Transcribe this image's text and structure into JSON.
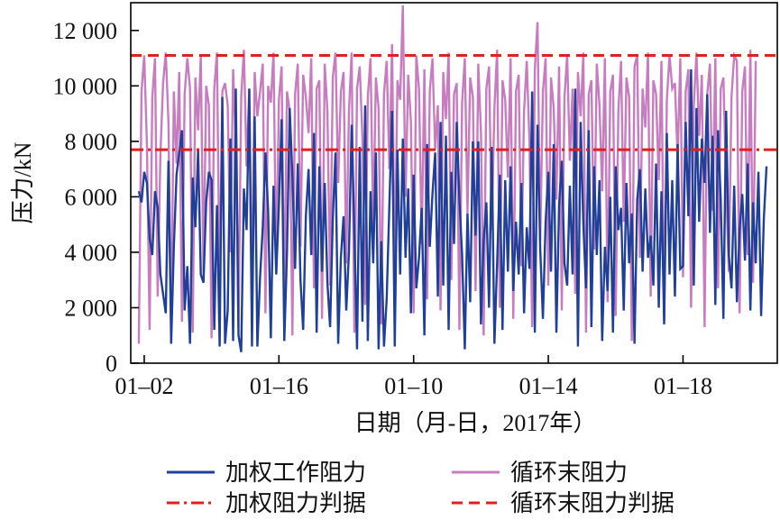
{
  "chart_data": {
    "type": "line",
    "title": "",
    "xlabel": "日期（月-日，2017年）",
    "ylabel": "压力/kN",
    "ylim": [
      0,
      13000
    ],
    "yticks": [
      0,
      2000,
      4000,
      6000,
      8000,
      10000,
      12000
    ],
    "ytick_labels": [
      "0",
      "2 000",
      "4 000",
      "6 000",
      "8 000",
      "10 000",
      "12 000"
    ],
    "x_tick_labels": [
      "01–02",
      "01–16",
      "01–10",
      "01–14",
      "01–18"
    ],
    "x_tick_positions": [
      2,
      52,
      102,
      152,
      202
    ],
    "xlim": [
      -3,
      237
    ],
    "legend_position": "bottom",
    "series": [
      {
        "name": "加权工作阻力",
        "color": "#1f3f99",
        "values": [
          6200,
          5800,
          6900,
          6500,
          4500,
          3900,
          6200,
          5600,
          3200,
          2500,
          1800,
          7300,
          700,
          4200,
          6800,
          7600,
          8400,
          1900,
          3500,
          700,
          6700,
          4900,
          7700,
          3200,
          2900,
          5800,
          6900,
          6600,
          1200,
          5700,
          600,
          9600,
          700,
          1900,
          8100,
          800,
          9900,
          1000,
          400,
          6300,
          4800,
          9900,
          600,
          8900,
          600,
          3100,
          4900,
          7600,
          5500,
          900,
          6400,
          3200,
          5700,
          8800,
          800,
          4000,
          9200,
          6800,
          3400,
          7200,
          3000,
          1200,
          5300,
          7000,
          3900,
          8300,
          1100,
          7100,
          3300,
          6500,
          2900,
          1300,
          5200,
          7600,
          700,
          3800,
          5300,
          1900,
          4000,
          8600,
          4700,
          500,
          7800,
          1500,
          9300,
          800,
          6200,
          3600,
          7600,
          500,
          4400,
          600,
          2300,
          5700,
          9100,
          600,
          7700,
          3200,
          8100,
          3800,
          6300,
          1800,
          6800,
          2700,
          3800,
          5600,
          1000,
          7900,
          4200,
          6100,
          7600,
          2400,
          8700,
          2800,
          8200,
          1200,
          6900,
          4300,
          8700,
          5900,
          3900,
          500,
          5400,
          2200,
          8000,
          4600,
          8000,
          1400,
          4400,
          5800,
          2000,
          7800,
          700,
          3600,
          6800,
          1200,
          6600,
          3300,
          7100,
          2600,
          5100,
          3200,
          6500,
          1800,
          4900,
          3400,
          9800,
          1100,
          8600,
          4100,
          1600,
          5100,
          6900,
          3300,
          7900,
          1100,
          5700,
          7300,
          3600,
          2800,
          6400,
          3200,
          9900,
          600,
          8700,
          5000,
          2700,
          8400,
          1300,
          7100,
          3900,
          6600,
          800,
          4200,
          2600,
          6000,
          1100,
          7100,
          4800,
          5600,
          1900,
          6500,
          3600,
          5400,
          700,
          5900,
          7000,
          3300,
          6300,
          3800,
          4600,
          2800,
          7200,
          2000,
          6200,
          1400,
          8300,
          3200,
          6600,
          2400,
          7900,
          3400,
          3500,
          8700,
          5300,
          10600,
          2800,
          9200,
          5100,
          8100,
          6500,
          9700,
          4700,
          8200,
          2100,
          8400,
          5900,
          1600,
          9100,
          3900,
          2700,
          6400,
          2200,
          4800,
          6100,
          3700,
          7200,
          1900,
          5800,
          3600,
          6900,
          1700,
          5200,
          7100
        ]
      },
      {
        "name": "循环末阻力",
        "color": "#c77cbf",
        "values": [
          700,
          9800,
          11100,
          7900,
          1200,
          9600,
          11000,
          2400,
          7500,
          10100,
          11200,
          8700,
          1100,
          9800,
          7200,
          10500,
          1500,
          9700,
          11000,
          9900,
          1100,
          10300,
          8400,
          11100,
          3200,
          10000,
          9300,
          900,
          9900,
          11200,
          2600,
          9800,
          10100,
          9300,
          4000,
          10600,
          8000,
          1300,
          9600,
          11300,
          7100,
          9900,
          2300,
          10500,
          8900,
          9800,
          10800,
          1800,
          10000,
          9400,
          11200,
          3300,
          9500,
          10700,
          2000,
          9800,
          9100,
          1000,
          9700,
          10800,
          4200,
          10400,
          9600,
          8300,
          11000,
          2700,
          9900,
          10200,
          1600,
          10800,
          9100,
          2800,
          10300,
          11200,
          6500,
          9800,
          10500,
          3600,
          9100,
          11200,
          1100,
          9900,
          10700,
          8100,
          2100,
          9600,
          11000,
          4900,
          10300,
          9200,
          1400,
          9700,
          10900,
          7000,
          11500,
          3400,
          10200,
          9500,
          12900,
          6000,
          10400,
          8700,
          1800,
          11100,
          9900,
          4300,
          10600,
          2300,
          9800,
          11000,
          7700,
          9300,
          1900,
          10500,
          8800,
          11200,
          3000,
          9700,
          10100,
          1200,
          9400,
          11000,
          5400,
          10300,
          9600,
          2600,
          10800,
          8300,
          1000,
          9900,
          10700,
          4800,
          9200,
          11300,
          2000,
          10200,
          9500,
          6700,
          11000,
          1600,
          9800,
          10400,
          3500,
          9100,
          10900,
          8000,
          1300,
          10600,
          12300,
          4400,
          9800,
          11000,
          2800,
          10300,
          9200,
          5900,
          10700,
          1900,
          9600,
          11100,
          7300,
          9900,
          2500,
          10500,
          8900,
          11200,
          1100,
          9700,
          10200,
          4100,
          10800,
          9300,
          6200,
          11000,
          2200,
          9800,
          10400,
          1700,
          9100,
          10900,
          5100,
          10300,
          9600,
          800,
          10700,
          11100,
          3800,
          9900,
          8500,
          11200,
          2400,
          10200,
          9700,
          6600,
          10900,
          1500,
          9500,
          11100,
          9900,
          10100,
          7400,
          11000,
          3100,
          9800,
          10600,
          2000,
          9300,
          11200,
          8200,
          10400,
          1300,
          9700,
          10800,
          5500,
          11000,
          2700,
          9900,
          10300,
          6400,
          3300,
          9600,
          11100,
          10900,
          1800,
          9800,
          10700,
          3900,
          11300,
          2900,
          10900
        ]
      },
      {
        "name": "加权阻力判据",
        "color": "#e0201e",
        "dash": "dashdot",
        "constant": 7700
      },
      {
        "name": "循环末阻力判据",
        "color": "#e0201e",
        "dash": "dash",
        "constant": 11100
      }
    ]
  }
}
